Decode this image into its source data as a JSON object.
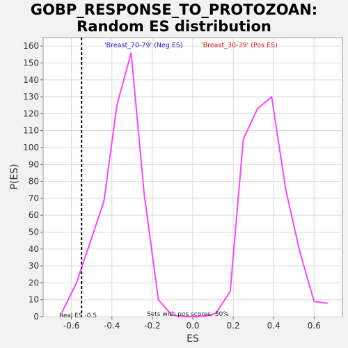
{
  "chart_data": {
    "type": "line",
    "title_line1": "GOBP_RESPONSE_TO_PROTOZOAN:",
    "title_line2": "Random ES distribution",
    "xlabel": "ES",
    "ylabel": "P(ES)",
    "xlim": [
      -0.74,
      0.74
    ],
    "ylim": [
      0,
      165
    ],
    "xticks": [
      -0.6,
      -0.4,
      -0.2,
      0.0,
      0.2,
      0.4,
      0.6
    ],
    "xtick_labels": [
      "-0.6",
      "-0.4",
      "-0.2",
      "0.0",
      "0.2",
      "0.4",
      "0.6"
    ],
    "yticks": [
      0,
      10,
      20,
      30,
      40,
      50,
      60,
      70,
      80,
      90,
      100,
      110,
      120,
      130,
      140,
      150,
      160
    ],
    "grid": true,
    "series": [
      {
        "color": "#ff44ff",
        "x": [
          -0.645,
          -0.575,
          -0.51,
          -0.44,
          -0.375,
          -0.305,
          -0.24,
          -0.17,
          -0.105,
          -0.04,
          0.025,
          0.09,
          0.115,
          0.185,
          0.25,
          0.32,
          0.39,
          0.46,
          0.53,
          0.6,
          0.665
        ],
        "y": [
          3,
          20,
          43,
          68,
          125,
          156,
          72,
          10,
          1,
          0,
          0,
          1,
          2,
          15,
          105,
          123,
          130,
          75,
          38,
          9,
          8
        ]
      }
    ],
    "real_es": -0.55,
    "legend": {
      "neg_label": "'Breast_70-79' (Neg ES)",
      "neg_color": "#2222cc",
      "pos_label": "'Breast_30-39' (Pos ES)",
      "pos_color": "#dd2222",
      "placement": "top"
    },
    "annotations": {
      "real_es_label": "Real ES -0.5",
      "pos_scores_label": "Sets with pos scores: 50%"
    }
  }
}
